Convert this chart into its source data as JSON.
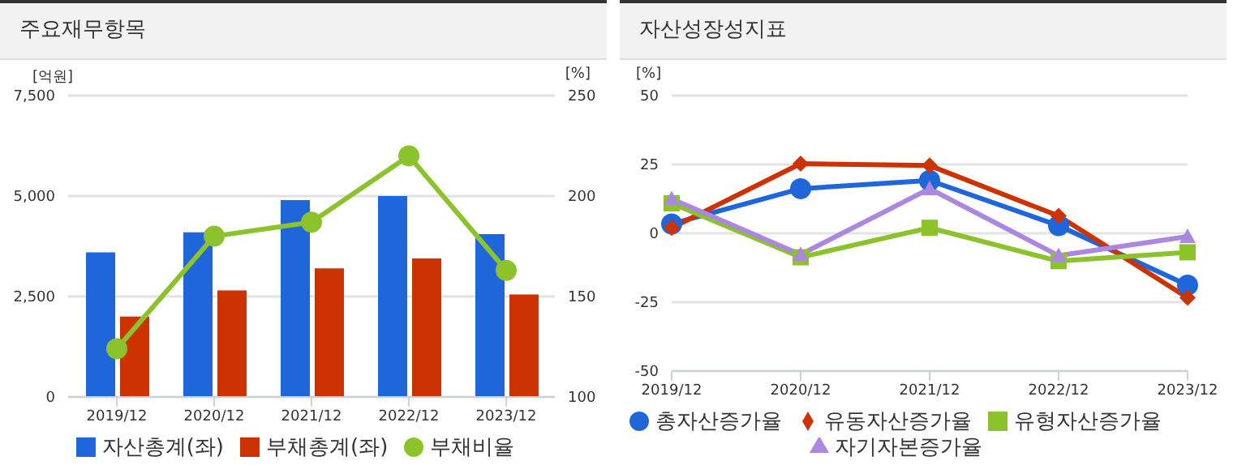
{
  "chart_data": [
    {
      "type": "bar",
      "title": "주요재무항목",
      "ylabel": "[억원]",
      "y2label": "[%]",
      "categories": [
        "2019/12",
        "2020/12",
        "2021/12",
        "2022/12",
        "2023/12"
      ],
      "series": [
        {
          "name": "자산총계(좌)",
          "color": "#1f66da",
          "values": [
            3600,
            4100,
            4900,
            5000,
            4050
          ]
        },
        {
          "name": "부채총계(좌)",
          "color": "#cc3300",
          "values": [
            2000,
            2650,
            3200,
            3450,
            2550
          ]
        },
        {
          "name": "부채비율",
          "type": "line",
          "axis": "y2",
          "color": "#8cc22b",
          "marker": "circle",
          "values": [
            124,
            180,
            187,
            220,
            163
          ]
        }
      ],
      "ylim": [
        0,
        7500
      ],
      "yticks": [
        0,
        {
          "value": 2500,
          "label": "2,500"
        },
        {
          "value": 5000,
          "label": "5,000"
        },
        {
          "value": 7500,
          "label": "7,500"
        }
      ],
      "y2lim": [
        100,
        250
      ],
      "y2ticks": [
        100,
        150,
        200,
        250
      ],
      "grid": "y",
      "legend": "bottom"
    },
    {
      "type": "line",
      "title": "자산성장성지표",
      "ylabel": "[%]",
      "categories": [
        "2019/12",
        "2020/12",
        "2021/12",
        "2022/12",
        "2023/12"
      ],
      "series": [
        {
          "name": "총자산증가율",
          "color": "#1f66da",
          "marker": "circle",
          "values": [
            3.4,
            16.2,
            19.2,
            2.8,
            -18.8
          ]
        },
        {
          "name": "유동자산증가율",
          "color": "#cc3300",
          "marker": "diamond",
          "values": [
            2,
            25.3,
            24.6,
            6.3,
            -23.4
          ]
        },
        {
          "name": "유형자산증가율",
          "color": "#8cc22b",
          "marker": "square",
          "values": [
            10.9,
            -8.7,
            2,
            -10.1,
            -6.9
          ]
        },
        {
          "name": "자기자본증가율",
          "color": "#ab87e0",
          "marker": "triangle",
          "values": [
            12.5,
            -7.7,
            16.2,
            -8.1,
            -1.2
          ]
        }
      ],
      "ylim": [
        -50,
        50
      ],
      "yticks": [
        -50,
        -25,
        0,
        25,
        50
      ],
      "grid": "y",
      "legend": "bottom"
    }
  ]
}
